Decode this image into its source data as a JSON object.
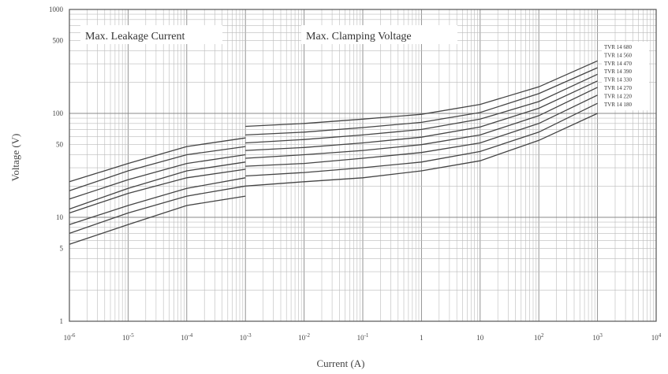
{
  "chart_data": {
    "type": "line",
    "title": "",
    "xlabel": "Current   (A)",
    "ylabel": "Voltage     (V)",
    "x_scale": "log",
    "y_scale": "log",
    "xlim": [
      1e-06,
      10000
    ],
    "ylim": [
      1,
      1000
    ],
    "x_ticks": [
      {
        "value": 1e-06,
        "base": "10",
        "exp": "-6"
      },
      {
        "value": 1e-05,
        "base": "10",
        "exp": "-5"
      },
      {
        "value": 0.0001,
        "base": "10",
        "exp": "-4"
      },
      {
        "value": 0.001,
        "base": "10",
        "exp": "-3"
      },
      {
        "value": 0.01,
        "base": "10",
        "exp": "-2"
      },
      {
        "value": 0.1,
        "base": "10",
        "exp": "-1"
      },
      {
        "value": 1,
        "base": "1",
        "exp": ""
      },
      {
        "value": 10,
        "base": "10",
        "exp": ""
      },
      {
        "value": 100,
        "base": "10",
        "exp": "2"
      },
      {
        "value": 1000,
        "base": "10",
        "exp": "3"
      },
      {
        "value": 10000,
        "base": "10",
        "exp": "4"
      }
    ],
    "y_ticks": [
      {
        "value": 1,
        "label": "1"
      },
      {
        "value": 5,
        "label": "5"
      },
      {
        "value": 10,
        "label": "10"
      },
      {
        "value": 50,
        "label": "50"
      },
      {
        "value": 100,
        "label": "100"
      },
      {
        "value": 500,
        "label": "500"
      },
      {
        "value": 1000,
        "label": "1000"
      }
    ],
    "grid": true,
    "annotations": [
      "Max. Leakage Current",
      "Max. Clamping Voltage"
    ],
    "legend_position": "right",
    "series": [
      {
        "name": "TVR 14 680",
        "leakage": [
          [
            1e-06,
            22
          ],
          [
            1e-05,
            33
          ],
          [
            0.0001,
            48
          ],
          [
            0.001,
            58
          ]
        ],
        "clamping": [
          [
            0.001,
            75
          ],
          [
            0.01,
            80
          ],
          [
            0.1,
            88
          ],
          [
            1,
            98
          ],
          [
            10,
            122
          ],
          [
            100,
            180
          ],
          [
            1000,
            320
          ]
        ]
      },
      {
        "name": "TVR 14 560",
        "leakage": [
          [
            1e-06,
            18
          ],
          [
            1e-05,
            28
          ],
          [
            0.0001,
            40
          ],
          [
            0.001,
            48
          ]
        ],
        "clamping": [
          [
            0.001,
            62
          ],
          [
            0.01,
            66
          ],
          [
            0.1,
            73
          ],
          [
            1,
            82
          ],
          [
            10,
            102
          ],
          [
            100,
            155
          ],
          [
            1000,
            275
          ]
        ]
      },
      {
        "name": "TVR 14 470",
        "leakage": [
          [
            1e-06,
            15
          ],
          [
            1e-05,
            23
          ],
          [
            0.0001,
            33
          ],
          [
            0.001,
            40
          ]
        ],
        "clamping": [
          [
            0.001,
            52
          ],
          [
            0.01,
            56
          ],
          [
            0.1,
            62
          ],
          [
            1,
            70
          ],
          [
            10,
            88
          ],
          [
            100,
            130
          ],
          [
            1000,
            238
          ]
        ]
      },
      {
        "name": "TVR 14 390",
        "leakage": [
          [
            1e-06,
            12
          ],
          [
            1e-05,
            19
          ],
          [
            0.0001,
            28
          ],
          [
            0.001,
            34
          ]
        ],
        "clamping": [
          [
            0.001,
            44
          ],
          [
            0.01,
            47
          ],
          [
            0.1,
            52
          ],
          [
            1,
            59
          ],
          [
            10,
            74
          ],
          [
            100,
            112
          ],
          [
            1000,
            205
          ]
        ]
      },
      {
        "name": "TVR 14 330",
        "leakage": [
          [
            1e-06,
            11
          ],
          [
            1e-05,
            17
          ],
          [
            0.0001,
            24
          ],
          [
            0.001,
            29
          ]
        ],
        "clamping": [
          [
            0.001,
            37
          ],
          [
            0.01,
            40
          ],
          [
            0.1,
            44
          ],
          [
            1,
            50
          ],
          [
            10,
            62
          ],
          [
            100,
            95
          ],
          [
            1000,
            178
          ]
        ]
      },
      {
        "name": "TVR 14 270",
        "leakage": [
          [
            1e-06,
            8.5
          ],
          [
            1e-05,
            13
          ],
          [
            0.0001,
            19
          ],
          [
            0.001,
            24
          ]
        ],
        "clamping": [
          [
            0.001,
            31
          ],
          [
            0.01,
            33
          ],
          [
            0.1,
            37
          ],
          [
            1,
            42
          ],
          [
            10,
            52
          ],
          [
            100,
            80
          ],
          [
            1000,
            150
          ]
        ]
      },
      {
        "name": "TVR 14 220",
        "leakage": [
          [
            1e-06,
            7
          ],
          [
            1e-05,
            11
          ],
          [
            0.0001,
            16
          ],
          [
            0.001,
            20
          ]
        ],
        "clamping": [
          [
            0.001,
            25
          ],
          [
            0.01,
            27
          ],
          [
            0.1,
            30
          ],
          [
            1,
            34
          ],
          [
            10,
            43
          ],
          [
            100,
            66
          ],
          [
            1000,
            125
          ]
        ]
      },
      {
        "name": "TVR 14 180",
        "leakage": [
          [
            1e-06,
            5.5
          ],
          [
            1e-05,
            8.5
          ],
          [
            0.0001,
            13
          ],
          [
            0.001,
            16
          ]
        ],
        "clamping": [
          [
            0.001,
            20
          ],
          [
            0.01,
            22
          ],
          [
            0.1,
            24
          ],
          [
            1,
            28
          ],
          [
            10,
            35
          ],
          [
            100,
            55
          ],
          [
            1000,
            100
          ]
        ]
      }
    ]
  }
}
